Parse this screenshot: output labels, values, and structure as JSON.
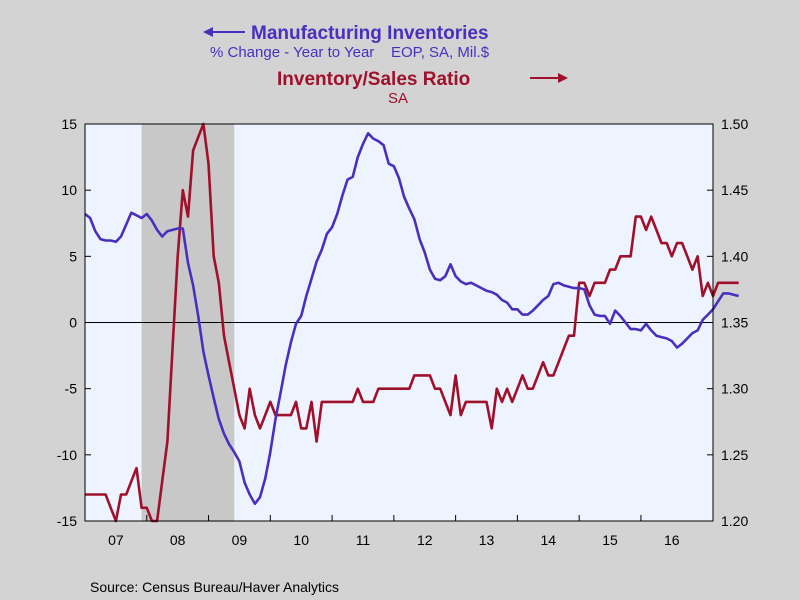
{
  "chart_data": {
    "type": "line",
    "titles": {
      "left_title": "Manufacturing Inventories",
      "left_subtitle": "% Change - Year to Year    EOP, SA, Mil.$",
      "right_title": "Inventory/Sales Ratio",
      "right_subtitle": "SA"
    },
    "x": {
      "start": "2007-01",
      "end": "2017-03",
      "tick_labels": [
        "07",
        "08",
        "09",
        "10",
        "11",
        "12",
        "13",
        "14",
        "15",
        "16"
      ]
    },
    "y_left": {
      "range": [
        -15,
        15
      ],
      "ticks": [
        "15",
        "10",
        "5",
        "0",
        "-5",
        "-10",
        "-15"
      ]
    },
    "y_right": {
      "range": [
        1.2,
        1.5
      ],
      "ticks": [
        "1.50",
        "1.45",
        "1.40",
        "1.35",
        "1.30",
        "1.25",
        "1.20"
      ]
    },
    "recession": {
      "start": "2007-12",
      "end": "2009-06"
    },
    "zero_line": true,
    "colors": {
      "inventories": "#4a2fbf",
      "ratio": "#a0102b",
      "plot_bg": "#eef4ff",
      "recession": "#c8c8c8"
    },
    "series": [
      {
        "axis": "left",
        "values": [
          8.2,
          7.9,
          6.9,
          6.3,
          6.2,
          6.2,
          6.1,
          6.5,
          7.4,
          8.3,
          8.1,
          7.9,
          8.2,
          7.7,
          7.0,
          6.5,
          6.9,
          7.0,
          7.1,
          7.1,
          4.5,
          2.8,
          0.5,
          -2.2,
          -4.0,
          -5.7,
          -7.3,
          -8.4,
          -9.2,
          -9.8,
          -10.5,
          -12.1,
          -13.0,
          -13.7,
          -13.2,
          -11.8,
          -9.8,
          -7.3,
          -5.3,
          -3.2,
          -1.5,
          -0.1,
          0.5,
          2.0,
          3.3,
          4.6,
          5.5,
          6.7,
          7.2,
          8.2,
          9.6,
          10.8,
          11.0,
          12.5,
          13.5,
          14.3,
          13.9,
          13.7,
          13.4,
          12.0,
          11.8,
          10.9,
          9.5,
          8.6,
          7.8,
          6.3,
          5.3,
          4.0,
          3.3,
          3.2,
          3.5,
          4.4,
          3.5,
          3.1,
          2.9,
          3.0,
          2.8,
          2.6,
          2.4,
          2.3,
          2.1,
          1.7,
          1.5,
          1.0,
          1.0,
          0.6,
          0.6,
          0.9,
          1.3,
          1.7,
          2.0,
          2.9,
          3.0,
          2.8,
          2.7,
          2.6,
          2.6,
          2.5,
          1.3,
          0.6,
          0.5,
          0.5,
          -0.1,
          0.9,
          0.5,
          0.0,
          -0.5,
          -0.5,
          -0.6,
          -0.1,
          -0.6,
          -1.0,
          -1.1,
          -1.2,
          -1.4,
          -1.9,
          -1.6,
          -1.2,
          -0.8,
          -0.6,
          0.2,
          0.6,
          1.0,
          1.6,
          2.2,
          2.2,
          2.1,
          2.0
        ]
      },
      {
        "axis": "right",
        "values": [
          1.22,
          1.22,
          1.22,
          1.22,
          1.22,
          1.21,
          1.2,
          1.22,
          1.22,
          1.23,
          1.24,
          1.21,
          1.21,
          1.2,
          1.2,
          1.23,
          1.26,
          1.33,
          1.4,
          1.45,
          1.43,
          1.48,
          1.49,
          1.5,
          1.47,
          1.4,
          1.38,
          1.34,
          1.32,
          1.3,
          1.28,
          1.27,
          1.3,
          1.28,
          1.27,
          1.28,
          1.29,
          1.28,
          1.28,
          1.28,
          1.28,
          1.29,
          1.27,
          1.27,
          1.29,
          1.26,
          1.29,
          1.29,
          1.29,
          1.29,
          1.29,
          1.29,
          1.29,
          1.3,
          1.29,
          1.29,
          1.29,
          1.3,
          1.3,
          1.3,
          1.3,
          1.3,
          1.3,
          1.3,
          1.31,
          1.31,
          1.31,
          1.31,
          1.3,
          1.3,
          1.29,
          1.28,
          1.31,
          1.28,
          1.29,
          1.29,
          1.29,
          1.29,
          1.29,
          1.27,
          1.3,
          1.29,
          1.3,
          1.29,
          1.3,
          1.31,
          1.3,
          1.3,
          1.31,
          1.32,
          1.31,
          1.31,
          1.32,
          1.33,
          1.34,
          1.34,
          1.38,
          1.38,
          1.37,
          1.38,
          1.38,
          1.38,
          1.39,
          1.39,
          1.4,
          1.4,
          1.4,
          1.43,
          1.43,
          1.42,
          1.43,
          1.42,
          1.41,
          1.41,
          1.4,
          1.41,
          1.41,
          1.4,
          1.39,
          1.4,
          1.37,
          1.38,
          1.37,
          1.38,
          1.38,
          1.38,
          1.38,
          1.38
        ]
      }
    ]
  },
  "footer": {
    "source": "Source:  Census Bureau/Haver Analytics"
  }
}
